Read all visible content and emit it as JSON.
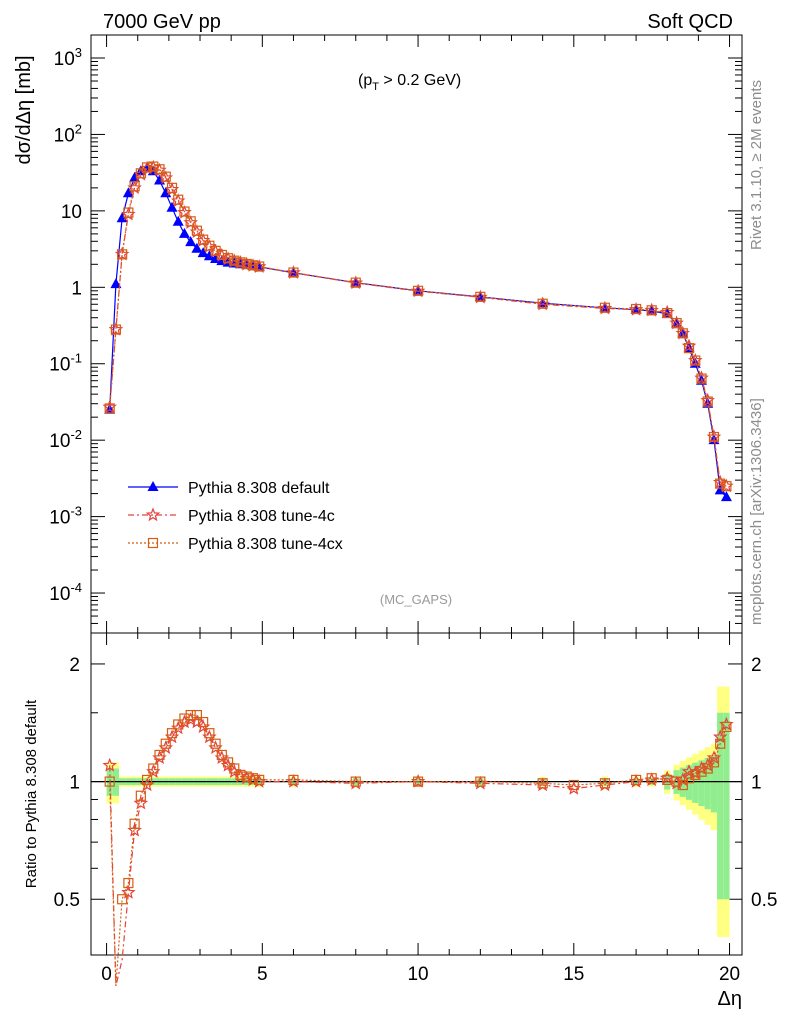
{
  "header": {
    "left": "7000 GeV pp",
    "right": "Soft QCD"
  },
  "side_text": {
    "top": "Rivet 3.1.10, ≥ 2M events",
    "bottom": "mcplots.cern.ch [arXiv:1306.3436]"
  },
  "main_panel": {
    "ylabel": "dσ/dΔη [mb]",
    "cut_label": "(p_T > 0.2 GeV)",
    "analysis_tag": "(MC_GAPS)",
    "y_tick_labels": [
      "10^-4",
      "10^-3",
      "10^-2",
      "10^-1",
      "1",
      "10",
      "10^2",
      "10^3"
    ]
  },
  "ratio_panel": {
    "ylabel": "Ratio to Pythia 8.308 default",
    "y_tick_labels": [
      "0.5",
      "1",
      "2"
    ]
  },
  "x_axis": {
    "label": "Δη",
    "tick_labels": [
      "0",
      "5",
      "10",
      "15",
      "20"
    ]
  },
  "legend": [
    {
      "label": "Pythia 8.308 default",
      "color": "#0000ff",
      "marker": "triangle",
      "line": "solid"
    },
    {
      "label": "Pythia 8.308 tune-4c",
      "color": "#e8403c",
      "marker": "star",
      "line": "dashdot"
    },
    {
      "label": "Pythia 8.308 tune-4cx",
      "color": "#d45f14",
      "marker": "open-square",
      "line": "dotted"
    }
  ],
  "chart_data": {
    "type": "scatter",
    "xlabel": "Δη",
    "ylabel": "dσ/dΔη [mb]",
    "xlim": [
      -0.5,
      20.4
    ],
    "ylim": [
      3e-05,
      2000
    ],
    "yscale": "log",
    "ratio_ylim": [
      0.36,
      2.4
    ],
    "ratio_yscale": "log",
    "series": [
      {
        "name": "Pythia 8.308 default",
        "color": "#0000ff",
        "x": [
          0.1,
          0.3,
          0.5,
          0.7,
          0.9,
          1.1,
          1.3,
          1.5,
          1.7,
          1.9,
          2.1,
          2.3,
          2.5,
          2.7,
          2.9,
          3.1,
          3.3,
          3.5,
          3.7,
          3.9,
          4.1,
          4.3,
          4.5,
          4.7,
          4.9,
          6,
          8,
          10,
          12,
          14,
          16,
          17,
          17.5,
          18,
          18.3,
          18.5,
          18.7,
          18.9,
          19.1,
          19.3,
          19.5,
          19.7,
          19.9
        ],
        "values": [
          0.025,
          1.1,
          8,
          17,
          27,
          33,
          36,
          33,
          25,
          17,
          11,
          7.2,
          5,
          3.9,
          3.2,
          2.8,
          2.55,
          2.35,
          2.2,
          2.1,
          2.05,
          2.0,
          1.95,
          1.9,
          1.85,
          1.55,
          1.15,
          0.9,
          0.75,
          0.62,
          0.54,
          0.51,
          0.49,
          0.45,
          0.33,
          0.25,
          0.16,
          0.1,
          0.06,
          0.03,
          0.01,
          0.0022,
          0.0018
        ]
      },
      {
        "name": "Pythia 8.308 tune-4c",
        "color": "#e8403c",
        "x": [
          0.1,
          0.3,
          0.5,
          0.7,
          0.9,
          1.1,
          1.3,
          1.5,
          1.7,
          1.9,
          2.1,
          2.3,
          2.5,
          2.7,
          2.9,
          3.1,
          3.3,
          3.5,
          3.7,
          3.9,
          4.1,
          4.3,
          4.5,
          4.7,
          4.9,
          6,
          8,
          10,
          12,
          14,
          16,
          17,
          17.5,
          18,
          18.3,
          18.5,
          18.7,
          18.9,
          19.1,
          19.3,
          19.5,
          19.7,
          19.9
        ],
        "values": [
          0.027,
          0.28,
          2.7,
          9,
          20,
          30,
          36,
          37,
          34,
          27,
          19,
          13.5,
          9.5,
          7,
          5.3,
          4.1,
          3.4,
          2.95,
          2.6,
          2.35,
          2.2,
          2.1,
          2.0,
          1.92,
          1.86,
          1.55,
          1.14,
          0.89,
          0.74,
          0.6,
          0.53,
          0.51,
          0.5,
          0.47,
          0.34,
          0.25,
          0.17,
          0.11,
          0.065,
          0.033,
          0.011,
          0.0028,
          0.0025
        ]
      },
      {
        "name": "Pythia 8.308 tune-4cx",
        "color": "#d45f14",
        "x": [
          0.1,
          0.3,
          0.5,
          0.7,
          0.9,
          1.1,
          1.3,
          1.5,
          1.7,
          1.9,
          2.1,
          2.3,
          2.5,
          2.7,
          2.9,
          3.1,
          3.3,
          3.5,
          3.7,
          3.9,
          4.1,
          4.3,
          4.5,
          4.7,
          4.9,
          6,
          8,
          10,
          12,
          14,
          16,
          17,
          17.5,
          18,
          18.3,
          18.5,
          18.7,
          18.9,
          19.1,
          19.3,
          19.5,
          19.7,
          19.9
        ],
        "values": [
          0.026,
          0.28,
          2.7,
          9.5,
          21,
          31,
          37,
          38,
          35,
          28,
          20,
          14,
          9.8,
          7.3,
          5.5,
          4.2,
          3.5,
          3.0,
          2.65,
          2.4,
          2.23,
          2.12,
          2.02,
          1.94,
          1.87,
          1.56,
          1.15,
          0.9,
          0.75,
          0.61,
          0.54,
          0.52,
          0.5,
          0.46,
          0.34,
          0.25,
          0.16,
          0.11,
          0.064,
          0.032,
          0.011,
          0.0027,
          0.0025
        ]
      }
    ],
    "ratio_series": [
      {
        "name": "Pythia 8.308 tune-4c",
        "x": [
          0.1,
          0.3,
          0.5,
          0.7,
          0.9,
          1.1,
          1.3,
          1.5,
          1.7,
          1.9,
          2.1,
          2.3,
          2.5,
          2.7,
          2.9,
          3.1,
          3.3,
          3.5,
          3.7,
          3.9,
          4.1,
          4.3,
          4.5,
          4.7,
          4.9,
          6,
          8,
          10,
          12,
          14,
          15,
          16,
          17,
          17.5,
          18,
          18.3,
          18.5,
          18.7,
          18.9,
          19.1,
          19.3,
          19.5,
          19.7,
          19.9
        ],
        "values": [
          1.1,
          0.3,
          0.35,
          0.52,
          0.75,
          0.88,
          0.98,
          1.06,
          1.15,
          1.22,
          1.3,
          1.37,
          1.42,
          1.44,
          1.42,
          1.38,
          1.3,
          1.22,
          1.15,
          1.1,
          1.06,
          1.03,
          1.02,
          1.01,
          1.0,
          1.0,
          0.99,
          1.0,
          0.99,
          0.98,
          0.96,
          0.98,
          1.0,
          1.01,
          1.02,
          0.99,
          1.01,
          1.06,
          1.05,
          1.08,
          1.1,
          1.15,
          1.3,
          1.4
        ]
      },
      {
        "name": "Pythia 8.308 tune-4cx",
        "x": [
          0.1,
          0.3,
          0.5,
          0.7,
          0.9,
          1.1,
          1.3,
          1.5,
          1.7,
          1.9,
          2.1,
          2.3,
          2.5,
          2.7,
          2.9,
          3.1,
          3.3,
          3.5,
          3.7,
          3.9,
          4.1,
          4.3,
          4.5,
          4.7,
          4.9,
          6,
          8,
          10,
          12,
          14,
          15,
          16,
          17,
          17.5,
          18,
          18.3,
          18.5,
          18.7,
          18.9,
          19.1,
          19.3,
          19.5,
          19.7,
          19.9
        ],
        "values": [
          1.0,
          0.3,
          0.5,
          0.55,
          0.78,
          0.92,
          1.01,
          1.08,
          1.17,
          1.25,
          1.33,
          1.4,
          1.45,
          1.48,
          1.48,
          1.42,
          1.33,
          1.25,
          1.17,
          1.12,
          1.08,
          1.04,
          1.03,
          1.02,
          1.01,
          1.01,
          1.0,
          1.0,
          1.0,
          0.99,
          0.98,
          0.99,
          1.01,
          1.02,
          1.01,
          1.0,
          0.98,
          1.02,
          1.04,
          1.06,
          1.08,
          1.12,
          1.25,
          1.38
        ]
      }
    ]
  }
}
